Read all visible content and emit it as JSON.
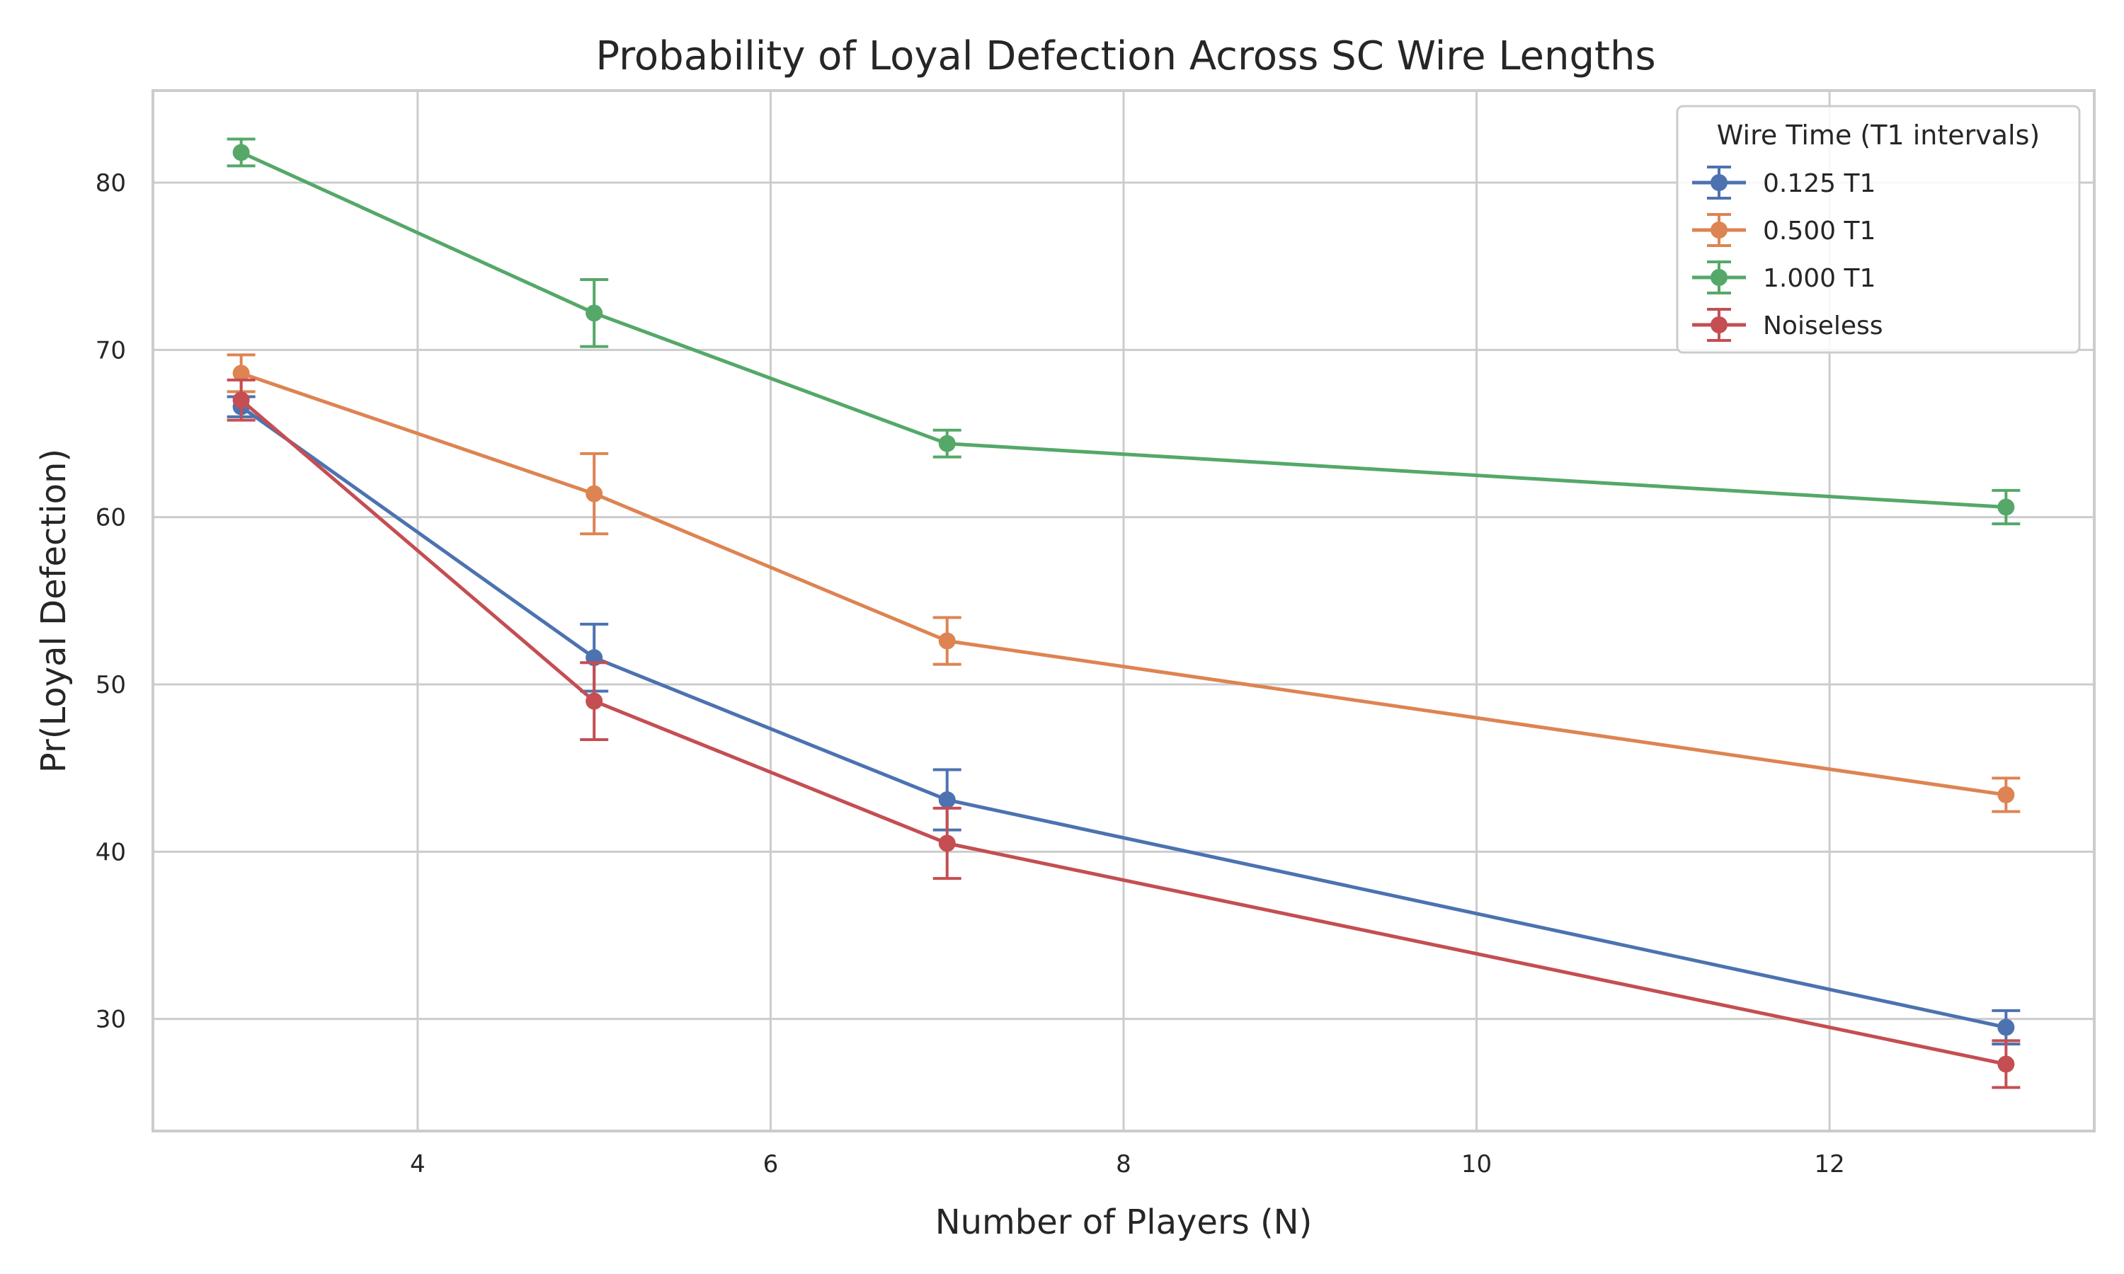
{
  "chart_data": {
    "type": "line",
    "title": "Probability of Loyal Defection Across SC Wire Lengths",
    "xlabel": "Number of Players (N)",
    "ylabel": "Pr(Loyal Defection)",
    "x": [
      3,
      5,
      7,
      13
    ],
    "xlim": [
      2.5,
      13.5
    ],
    "ylim": [
      23.3,
      85.5
    ],
    "xticks": [
      4,
      6,
      8,
      10,
      12
    ],
    "yticks": [
      30,
      40,
      50,
      60,
      70,
      80
    ],
    "grid": true,
    "legend": {
      "title": "Wire Time (T1 intervals)",
      "placement": "top-right"
    },
    "series": [
      {
        "name": "0.125 T1",
        "color": "#4c72b0",
        "values": [
          66.6,
          51.6,
          43.1,
          29.5
        ],
        "errors": [
          0.6,
          2.0,
          1.8,
          1.0
        ]
      },
      {
        "name": "0.500 T1",
        "color": "#dd8452",
        "values": [
          68.6,
          61.4,
          52.6,
          43.4
        ],
        "errors": [
          1.1,
          2.4,
          1.4,
          1.0
        ]
      },
      {
        "name": "1.000 T1",
        "color": "#55a868",
        "values": [
          81.8,
          72.2,
          64.4,
          60.6
        ],
        "errors": [
          0.8,
          2.0,
          0.8,
          1.0
        ]
      },
      {
        "name": "Noiseless",
        "color": "#c44e52",
        "values": [
          67.0,
          49.0,
          40.5,
          27.3
        ],
        "errors": [
          1.2,
          2.3,
          2.1,
          1.4
        ]
      }
    ]
  }
}
